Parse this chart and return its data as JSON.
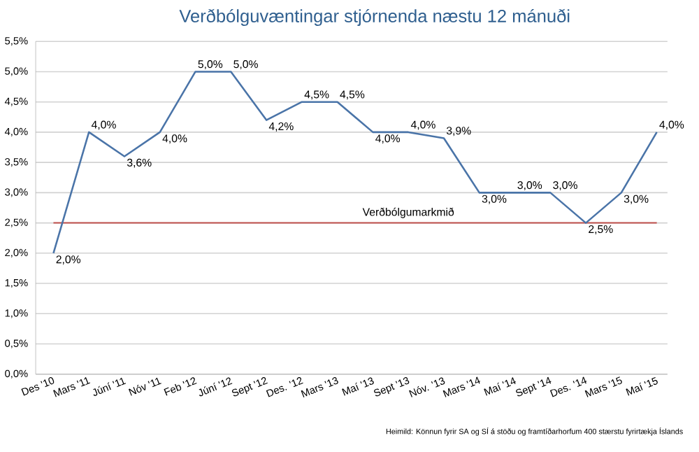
{
  "chart_data": {
    "type": "line",
    "title": "Verðbólguvæntingar stjórnenda næstu 12 mánuði",
    "categories": [
      "Des '10",
      "Mars '11",
      "Júní '11",
      "Nóv '11",
      "Feb '12",
      "Júní '12",
      "Sept '12",
      "Des. '12",
      "Mars '13",
      "Maí '13",
      "Sept '13",
      "Nóv. '13",
      "Mars '14",
      "Maí '14",
      "Sept '14",
      "Des. '14",
      "Mars '15",
      "Maí '15"
    ],
    "series": [
      {
        "color": "#4a74a8",
        "values": [
          2.0,
          4.0,
          3.6,
          4.0,
          5.0,
          5.0,
          4.2,
          4.5,
          4.5,
          4.0,
          4.0,
          3.9,
          3.0,
          3.0,
          3.0,
          2.5,
          3.0,
          4.0
        ],
        "value_labels": [
          "2,0%",
          "4,0%",
          "3,6%",
          "4,0%",
          "5,0%",
          "5,0%",
          "4,2%",
          "4,5%",
          "4,5%",
          "4,0%",
          "4,0%",
          "3,9%",
          "3,0%",
          "3,0%",
          "3,0%",
          "2,5%",
          "3,0%",
          "4,0%"
        ]
      }
    ],
    "ylim": [
      0,
      5.5
    ],
    "yticks": [
      {
        "value": 0,
        "label": "0,0%"
      },
      {
        "value": 0.5,
        "label": "0,5%"
      },
      {
        "value": 1,
        "label": "1,0%"
      },
      {
        "value": 1.5,
        "label": "1,5%"
      },
      {
        "value": 2,
        "label": "2,0%"
      },
      {
        "value": 2.5,
        "label": "2,5%"
      },
      {
        "value": 3,
        "label": "3,0%"
      },
      {
        "value": 3.5,
        "label": "3,5%"
      },
      {
        "value": 4,
        "label": "4,0%"
      },
      {
        "value": 4.5,
        "label": "4,5%"
      },
      {
        "value": 5,
        "label": "5,0%"
      },
      {
        "value": 5.5,
        "label": "5,5%"
      }
    ],
    "grid": "y",
    "marker": "none",
    "line_style": "solid",
    "ref_lines": [
      {
        "axis": "y",
        "value": 2.5,
        "label": "Verðbólgumarkmið",
        "color": "#c0504d"
      }
    ],
    "annotations": [
      "Heimild: Könnun fyrir SA og SÍ á stöðu og framtíðarhorfum 400 stærstu fyrirtækja Íslands"
    ]
  }
}
